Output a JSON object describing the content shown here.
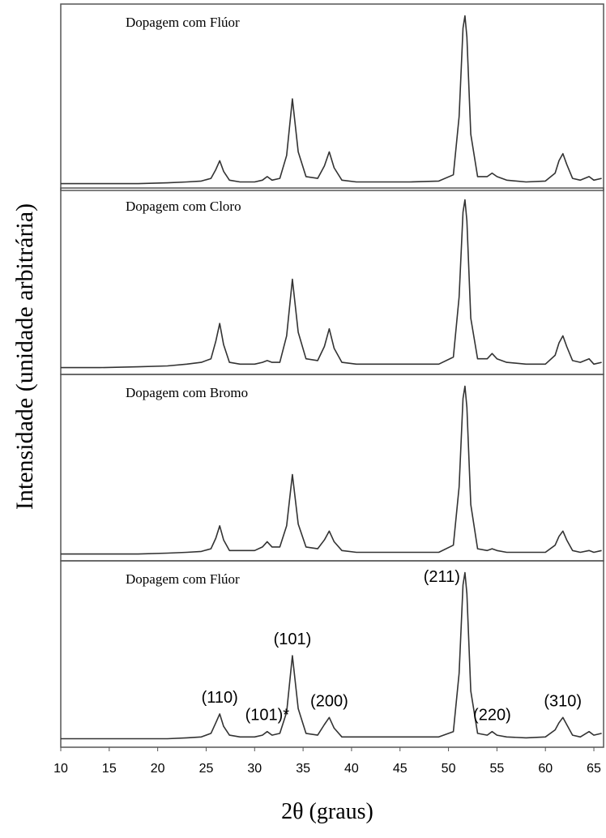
{
  "chart_data": [
    {
      "type": "line",
      "title": "Dopagem com Flúor",
      "color": "#333333",
      "xlim": [
        10,
        66
      ],
      "ylim": [
        0,
        100
      ],
      "x": [
        10,
        14,
        18,
        21,
        23,
        24.5,
        25.5,
        26,
        26.4,
        26.8,
        27.4,
        28.5,
        30,
        30.8,
        31.3,
        31.8,
        32.6,
        33.3,
        33.9,
        34.5,
        35.3,
        36.5,
        37.2,
        37.7,
        38.2,
        39,
        40.5,
        43,
        46,
        49,
        50.5,
        51.1,
        51.5,
        51.7,
        51.9,
        52.3,
        53,
        54,
        54.5,
        55,
        56,
        58,
        60,
        61,
        61.4,
        61.8,
        62.2,
        62.8,
        63.6,
        64.5,
        65,
        65.8
      ],
      "values": [
        2,
        2,
        2,
        2.5,
        3,
        3.5,
        5,
        10,
        15,
        9,
        4,
        3,
        3,
        4,
        6,
        4,
        5,
        18,
        50,
        20,
        6,
        5,
        12,
        20,
        11,
        4,
        3,
        3,
        3,
        3.5,
        7,
        40,
        90,
        97,
        85,
        30,
        6,
        6,
        8,
        6,
        4,
        3,
        3.5,
        8,
        15,
        19,
        13,
        5,
        4,
        6,
        4,
        5
      ]
    },
    {
      "type": "line",
      "title": "Dopagem com Cloro",
      "color": "#333333",
      "xlim": [
        10,
        66
      ],
      "ylim": [
        0,
        100
      ],
      "x": [
        10,
        14,
        18,
        21,
        23,
        24.5,
        25.5,
        26,
        26.4,
        26.8,
        27.4,
        28.5,
        30,
        30.8,
        31.3,
        31.8,
        32.6,
        33.3,
        33.9,
        34.5,
        35.3,
        36.5,
        37.2,
        37.7,
        38.2,
        39,
        40.5,
        43,
        46,
        49,
        50.5,
        51.1,
        51.5,
        51.7,
        51.9,
        52.3,
        53,
        54,
        54.5,
        55,
        56,
        58,
        60,
        61,
        61.4,
        61.8,
        62.2,
        62.8,
        63.6,
        64.5,
        65,
        65.8
      ],
      "values": [
        2,
        2,
        2.5,
        3,
        4,
        5,
        7,
        17,
        27,
        15,
        5,
        4,
        4,
        5,
        6,
        5,
        5,
        20,
        52,
        22,
        7,
        6,
        14,
        24,
        13,
        5,
        4,
        4,
        4,
        4,
        8,
        42,
        90,
        97,
        85,
        30,
        7,
        7,
        10,
        7,
        5,
        4,
        4,
        9,
        16,
        20,
        14,
        6,
        5,
        7,
        4,
        5
      ]
    },
    {
      "type": "line",
      "title": "Dopagem com Bromo",
      "color": "#333333",
      "xlim": [
        10,
        66
      ],
      "ylim": [
        0,
        100
      ],
      "x": [
        10,
        14,
        18,
        21,
        23,
        24.5,
        25.5,
        26,
        26.4,
        26.8,
        27.4,
        28.5,
        30,
        30.8,
        31.3,
        31.8,
        32.6,
        33.3,
        33.9,
        34.5,
        35.3,
        36.5,
        37.2,
        37.7,
        38.2,
        39,
        40.5,
        43,
        46,
        49,
        50.5,
        51.1,
        51.5,
        51.7,
        51.9,
        52.3,
        53,
        54,
        54.5,
        55,
        56,
        58,
        60,
        61,
        61.4,
        61.8,
        62.2,
        62.8,
        63.6,
        64.5,
        65,
        65.8
      ],
      "values": [
        2,
        2,
        2,
        2.5,
        3,
        3.5,
        5,
        11,
        18,
        10,
        4,
        4,
        4,
        6,
        9,
        6,
        6,
        18,
        47,
        19,
        6,
        5,
        10,
        15,
        9,
        4,
        3,
        3,
        3,
        3,
        7,
        40,
        90,
        97,
        85,
        30,
        5,
        4,
        5,
        4,
        3,
        3,
        3,
        7,
        12,
        15,
        10,
        4,
        3,
        4,
        3,
        4
      ]
    },
    {
      "type": "line",
      "title": "Dopagem com Flúor",
      "color": "#333333",
      "xlim": [
        10,
        66
      ],
      "ylim": [
        0,
        100
      ],
      "x": [
        10,
        14,
        18,
        21,
        23,
        24.5,
        25.5,
        26,
        26.4,
        26.8,
        27.4,
        28.5,
        30,
        30.8,
        31.3,
        31.8,
        32.6,
        33.3,
        33.9,
        34.5,
        35.3,
        36.5,
        37.2,
        37.7,
        38.2,
        39,
        40.5,
        43,
        46,
        49,
        50.5,
        51.1,
        51.5,
        51.7,
        51.9,
        52.3,
        53,
        54,
        54.5,
        55,
        56,
        58,
        60,
        61,
        61.4,
        61.8,
        62.2,
        62.8,
        63.6,
        64.5,
        65,
        65.8
      ],
      "values": [
        3,
        3,
        3,
        3,
        3.5,
        4,
        6,
        12,
        17,
        10,
        5,
        4,
        4,
        5,
        7,
        5,
        6,
        18,
        50,
        20,
        6,
        5,
        11,
        15,
        9,
        4,
        4,
        4,
        4,
        4,
        7,
        40,
        90,
        97,
        85,
        30,
        6,
        5,
        7,
        5,
        4,
        3.5,
        4,
        8,
        12,
        15,
        11,
        5,
        4,
        7,
        5,
        6
      ],
      "xticks": [
        10,
        15,
        20,
        25,
        30,
        35,
        40,
        45,
        50,
        55,
        60,
        65
      ],
      "x_label": "2θ (graus)",
      "y_label": "Intensidade (unidade arbitrária)",
      "annotations": [
        {
          "text": "(110)",
          "x": 26.4
        },
        {
          "text": "(101)*",
          "x": 31.3
        },
        {
          "text": "(101)",
          "x": 33.9
        },
        {
          "text": "(200)",
          "x": 37.7
        },
        {
          "text": "(211)",
          "x": 51.7
        },
        {
          "text": "(220)",
          "x": 54.5
        },
        {
          "text": "(310)",
          "x": 61.8
        }
      ]
    }
  ]
}
